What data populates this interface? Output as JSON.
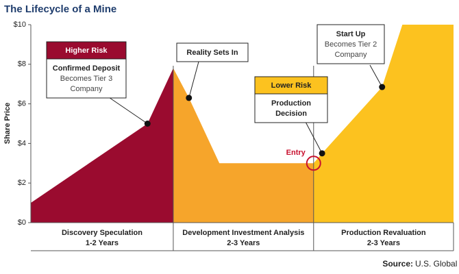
{
  "chart_data": {
    "type": "area",
    "title": "The Lifecycle of a Mine",
    "y_label": "Share Price",
    "x": [
      0,
      27.6,
      33.7,
      37.4,
      44.6,
      66.9,
      68.9,
      83.1,
      87.9,
      100
    ],
    "values": [
      1,
      5,
      7.8,
      6.3,
      3,
      3,
      3.5,
      6.85,
      10,
      10
    ],
    "xlim": [
      0,
      100
    ],
    "ylim": [
      0,
      10
    ],
    "yticks": [
      {
        "value": 0,
        "label": "$0"
      },
      {
        "value": 2,
        "label": "$2"
      },
      {
        "value": 4,
        "label": "$4"
      },
      {
        "value": 6,
        "label": "$6"
      },
      {
        "value": 8,
        "label": "$8"
      },
      {
        "value": 10,
        "label": "$10"
      }
    ],
    "phases": [
      {
        "name": "Discovery Speculation",
        "duration": "1-2 Years",
        "start": 0,
        "end": 33.7,
        "color": "#9a0b2f"
      },
      {
        "name": "Development Investment Analysis",
        "duration": "2-3 Years",
        "start": 33.7,
        "end": 66.9,
        "color": "#f6a52b"
      },
      {
        "name": "Production Revaluation",
        "duration": "2-3 Years",
        "start": 66.9,
        "end": 100,
        "color": "#fcc21f"
      }
    ],
    "marked_points": [
      1,
      3,
      6
    ],
    "annotations": [
      {
        "header": "Higher Risk",
        "header_color": "#9a0b2f",
        "lines": [
          "Confirmed Deposit",
          "Becomes Tier 3",
          "Company"
        ]
      },
      {
        "lines": [
          "Reality Sets In"
        ]
      },
      {
        "header": "Lower Risk",
        "header_color": "#fcc21f",
        "lines": [
          "Production",
          "Decision"
        ]
      },
      {
        "lines": [
          "Start Up",
          "Becomes Tier 2",
          "Company"
        ]
      }
    ],
    "entry_label": "Entry",
    "entry_color": "#c8102e",
    "source_label": "Source:",
    "source": "U.S. Global Research"
  }
}
